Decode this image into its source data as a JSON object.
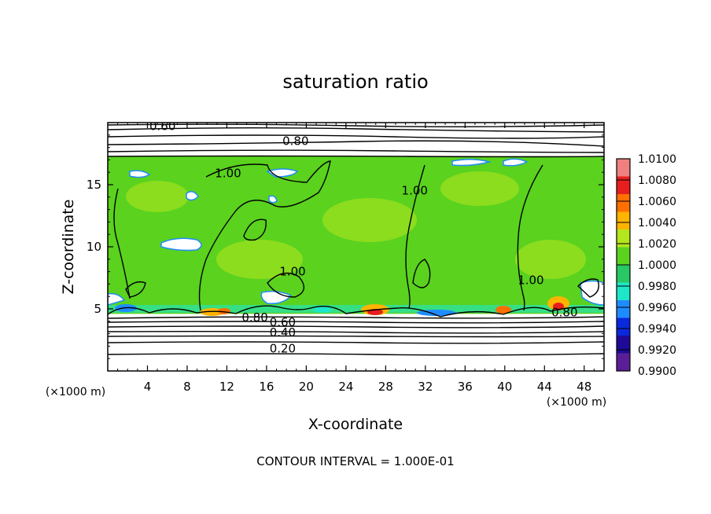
{
  "chart_data": {
    "type": "heatmap",
    "title": "saturation ratio",
    "xlabel": "X-coordinate",
    "ylabel": "Z-coordinate",
    "x_unit": "(×1000 m)",
    "z_unit": "(×1000 m)",
    "xlim": [
      0,
      50
    ],
    "ylim": [
      0,
      20
    ],
    "x_ticks": [
      4,
      8,
      12,
      16,
      20,
      24,
      28,
      32,
      36,
      40,
      44,
      48
    ],
    "y_ticks": [
      5,
      10,
      15
    ],
    "colorbar": {
      "min": 0.99,
      "max": 1.01,
      "labels": [
        "1.0100",
        "1.0080",
        "1.0060",
        "1.0040",
        "1.0020",
        "1.0000",
        "0.9980",
        "0.9960",
        "0.9940",
        "0.9920",
        "0.9900"
      ],
      "colors": [
        "#f08080",
        "#e61e1e",
        "#ff7000",
        "#ffb400",
        "#b4e61e",
        "#5ad21e",
        "#28c864",
        "#1ee6c8",
        "#1e8cff",
        "#0a28dc",
        "#1e0a96",
        "#5a1e96"
      ]
    },
    "field": {
      "layer_bottom_km": 4.6,
      "layer_top_km": 17.3,
      "base_color": "#5ad21e",
      "near_saturation_color": "#b4e61e"
    },
    "contour_labels": [
      {
        "text": "0.60",
        "x": 4.2,
        "z": 19.4
      },
      {
        "text": "0.80",
        "x": 17.6,
        "z": 18.2
      },
      {
        "text": "1.00",
        "x": 10.8,
        "z": 15.6
      },
      {
        "text": "1.00",
        "x": 29.6,
        "z": 14.2
      },
      {
        "text": "1.00",
        "x": 17.3,
        "z": 7.7
      },
      {
        "text": "1.00",
        "x": 41.3,
        "z": 7.0
      },
      {
        "text": "0.80",
        "x": 13.5,
        "z": 4.0
      },
      {
        "text": "0.80",
        "x": 44.7,
        "z": 4.4
      },
      {
        "text": "0.60",
        "x": 16.3,
        "z": 3.6
      },
      {
        "text": "0.40",
        "x": 16.3,
        "z": 2.8
      },
      {
        "text": "0.20",
        "x": 16.3,
        "z": 1.5
      }
    ],
    "contour_interval_text": "CONTOUR INTERVAL = 1.000E-01"
  }
}
